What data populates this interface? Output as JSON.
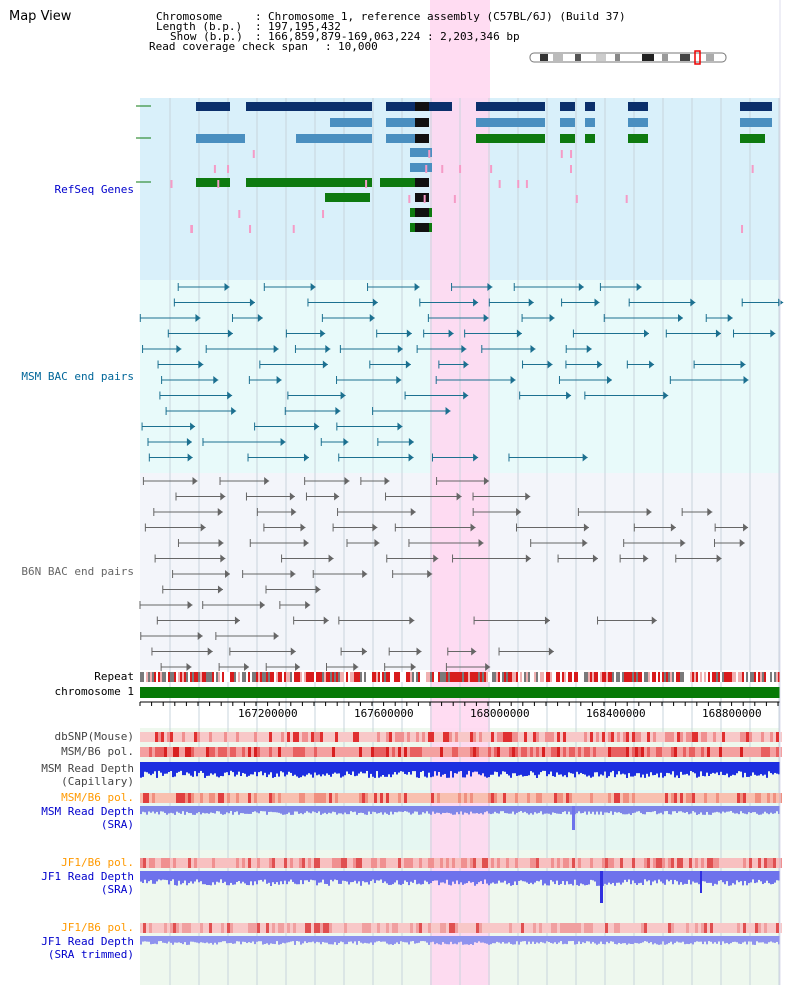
{
  "title": "Map View",
  "header": {
    "chromosome_label": "Chromosome",
    "chromosome_value": "Chromosome 1, reference assembly (C57BL/6J) (Build 37)",
    "length_label": "Length (b.p.)",
    "length_value": "197,195,432",
    "show_label": "Show (b.p.)",
    "show_value": "166,859,879-169,063,224 : 2,203,346 bp",
    "coverage_label": "Read coverage check span",
    "coverage_value": "10,000"
  },
  "tracks": {
    "refseq": "RefSeq Genes",
    "msm_bac": "MSM BAC end pairs",
    "b6n_bac": "B6N BAC end pairs",
    "repeat": "Repeat",
    "chromosome": "chromosome 1",
    "dbsnp": "dbSNP(Mouse)",
    "msm_b6_pol": "MSM/B6 pol.",
    "msm_depth_cap_1": "MSM Read Depth",
    "msm_depth_cap_2": "(Capillary)",
    "msm_b6_pol2": "MSM/B6 pol.",
    "msm_depth_sra_1": "MSM Read Depth",
    "msm_depth_sra_2": "(SRA)",
    "jf1_pol": "JF1/B6 pol.",
    "jf1_depth_1": "JF1 Read Depth",
    "jf1_depth_2": "(SRA)",
    "jf1_pol2": "JF1/B6 pol.",
    "jf1_trim_1": "JF1 Read Depth",
    "jf1_trim_2": "(SRA trimmed)"
  },
  "axis": {
    "ticks": [
      "167200000",
      "167600000",
      "168000000",
      "168400000",
      "168800000"
    ]
  },
  "colors": {
    "refseq_label": "#0000cc",
    "msm_label": "#006699",
    "b6n_label": "#666666",
    "orange_label": "#ff9900",
    "blue_label": "#0000cc",
    "highlight": "#ffccee"
  }
}
